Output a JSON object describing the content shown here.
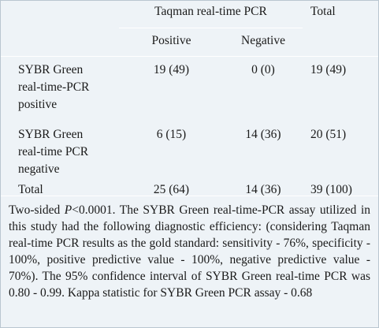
{
  "table": {
    "group_header": "Taqman real-time PCR",
    "total_header": "Total",
    "sub_headers": [
      "Positive",
      "Negative"
    ],
    "rows": [
      {
        "label_lines": [
          "SYBR Green",
          "real-time-PCR",
          "positive"
        ],
        "positive": "19 (49)",
        "negative": "0 (0)",
        "total": "19 (49)"
      },
      {
        "label_lines": [
          "SYBR Green",
          "real-time PCR",
          "negative"
        ],
        "positive": "6 (15)",
        "negative": "14 (36)",
        "total": "20 (51)"
      },
      {
        "label_lines": [
          "Total"
        ],
        "positive": "25 (64)",
        "negative": "14 (36)",
        "total": "39 (100)"
      }
    ]
  },
  "footnote": {
    "prefix": "Two-sided ",
    "p_symbol": "P",
    "p_value": "<0.0001.",
    "text": " The SYBR Green real-time-PCR assay utilized in this study had the following diagnostic efficiency: (considering Taqman real-time PCR results as the gold standard: sensitivity - 76%, specificity - 100%, positive predictive value - 100%, negative predictive value - 70%). The 95% confidence interval of SYBR Green real-time PCR was 0.80 - 0.99. Kappa statistic for SYBR Green PCR assay - 0.68"
  }
}
